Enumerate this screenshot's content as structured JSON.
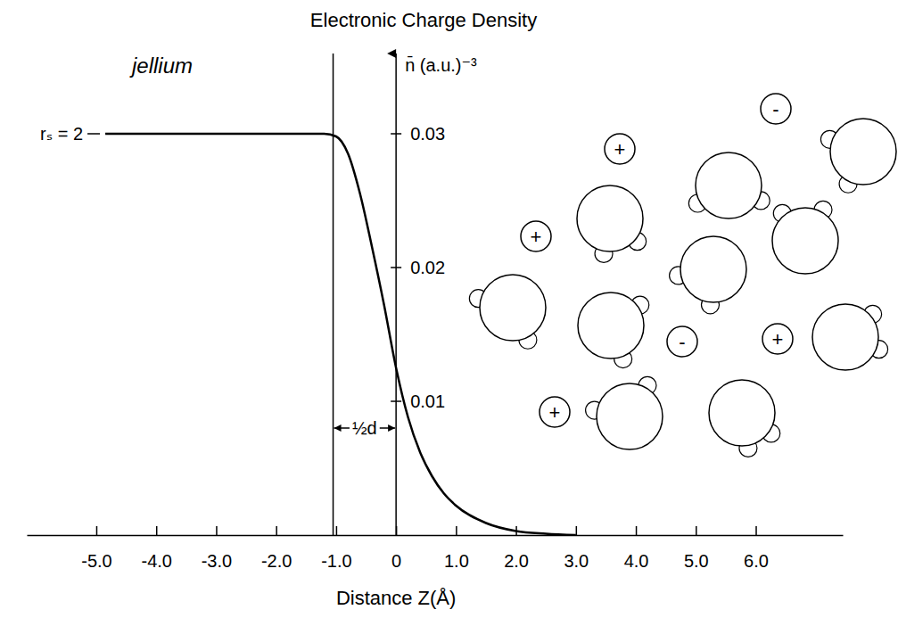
{
  "chart_data": {
    "type": "line",
    "title": "Electronic Charge Density",
    "x_label": "Distance Z(Å)",
    "y_label": "n̄ (a.u.)⁻³",
    "annotation": "jellium",
    "level_label": "rₛ = 2",
    "half_d": {
      "label": "½d",
      "from": -1.05,
      "to": 0
    },
    "ions": [
      "+",
      "+",
      "-",
      "-",
      "+",
      "+"
    ],
    "x": [
      -4.85,
      -3.0,
      -2.0,
      -1.5,
      -1.2,
      -1.0,
      -0.8,
      -0.6,
      -0.4,
      -0.2,
      0.0,
      0.2,
      0.4,
      0.6,
      0.8,
      1.0,
      1.5,
      2.0,
      2.5,
      3.0
    ],
    "values": [
      0.03,
      0.03,
      0.03,
      0.03,
      0.03,
      0.0298,
      0.0285,
      0.0255,
      0.0215,
      0.0172,
      0.0125,
      0.0088,
      0.0062,
      0.0044,
      0.0031,
      0.0022,
      0.0009,
      0.0003,
      0.0001,
      0.0
    ],
    "color": "#000000",
    "xlim": [
      -6.16,
      7.45
    ],
    "ylim": [
      0,
      0.036
    ],
    "xticks": [
      {
        "value": -5,
        "label": "-5.0"
      },
      {
        "value": -4,
        "label": "-4.0"
      },
      {
        "value": -3,
        "label": "-3.0"
      },
      {
        "value": -2,
        "label": "-2.0"
      },
      {
        "value": -1,
        "label": "-1.0"
      },
      0,
      {
        "value": 1,
        "label": "1.0"
      },
      {
        "value": 2,
        "label": "2.0"
      },
      {
        "value": 3,
        "label": "3.0"
      },
      {
        "value": 4,
        "label": "4.0"
      },
      {
        "value": 5,
        "label": "5.0"
      },
      {
        "value": 6,
        "label": "6.0"
      }
    ],
    "yticks": [
      0.01,
      0.02,
      0.03
    ],
    "grid": false
  }
}
